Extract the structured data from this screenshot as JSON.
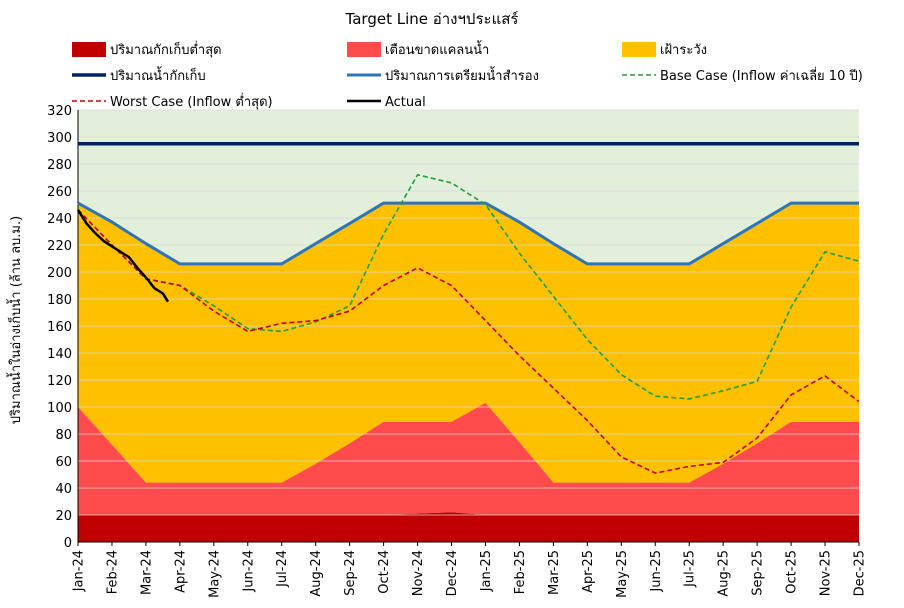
{
  "chart_data": {
    "type": "area",
    "title": "Target Line อ่างฯประแสร์",
    "ylabel": "ปริมาณน้ำในอ่างเก็บน้ำ (ล้าน ลบ.ม.)",
    "xlabel": "",
    "ylim": [
      0,
      320
    ],
    "yticks": [
      0,
      20,
      40,
      60,
      80,
      100,
      120,
      140,
      160,
      180,
      200,
      220,
      240,
      260,
      280,
      300,
      320
    ],
    "categories": [
      "Jan-24",
      "Feb-24",
      "Mar-24",
      "Apr-24",
      "May-24",
      "Jun-24",
      "Jul-24",
      "Aug-24",
      "Sep-24",
      "Oct-24",
      "Nov-24",
      "Dec-24",
      "Jan-25",
      "Feb-25",
      "Mar-25",
      "Apr-25",
      "May-25",
      "Jun-25",
      "Jul-25",
      "Aug-25",
      "Sep-25",
      "Oct-25",
      "Nov-25",
      "Dec-25"
    ],
    "legend": {
      "dead_storage": "ปริมาณกักเก็บต่ำสุด",
      "warning": "เตือนขาดแคลนน้ำ",
      "watch": "เฝ้าระวัง",
      "capacity": "ปริมาณน้ำกักเก็บ",
      "reserve": "ปริมาณการเตรียมน้ำสำรอง",
      "base_case": "Base Case (Inflow ค่าเฉลี่ย 10 ปี)",
      "worst_case": "Worst Case (Inflow ต่ำสุด)",
      "actual": "Actual"
    },
    "colors": {
      "dead_storage": "#C00000",
      "warning": "#FF4B4B",
      "watch": "#FFC000",
      "surplus": "#E2EFDA",
      "capacity": "#002060",
      "reserve": "#2E75B6",
      "base_case": "#1E9E3E",
      "worst_case": "#C00000",
      "actual": "#000000",
      "grid": "#D9D9D9"
    },
    "series": {
      "dead_storage": [
        20,
        20,
        20,
        20,
        20,
        20,
        20,
        20,
        20,
        20,
        21,
        22,
        20,
        20,
        20,
        20,
        20,
        20,
        20,
        20,
        20,
        20,
        20,
        20
      ],
      "warning": [
        100,
        72,
        44,
        44,
        44,
        44,
        44,
        58,
        73,
        89,
        89,
        89,
        103,
        74,
        44,
        44,
        44,
        44,
        44,
        58,
        73,
        89,
        89,
        89
      ],
      "capacity": [
        295,
        295,
        295,
        295,
        295,
        295,
        295,
        295,
        295,
        295,
        295,
        295,
        295,
        295,
        295,
        295,
        295,
        295,
        295,
        295,
        295,
        295,
        295,
        295
      ],
      "reserve": [
        251,
        237,
        221,
        206,
        206,
        206,
        206,
        221,
        236,
        251,
        251,
        251,
        251,
        237,
        221,
        206,
        206,
        206,
        206,
        221,
        236,
        251,
        251,
        251
      ],
      "base_case": [
        246,
        220,
        195,
        190,
        175,
        158,
        156,
        163,
        175,
        228,
        272,
        266,
        250,
        214,
        182,
        150,
        124,
        108,
        106,
        112,
        119,
        174,
        215,
        208
      ],
      "worst_case": [
        246,
        220,
        195,
        190,
        171,
        156,
        162,
        164,
        171,
        190,
        203,
        190,
        164,
        138,
        114,
        90,
        63,
        51,
        56,
        59,
        77,
        109,
        123,
        104
      ],
      "actual": [
        {
          "x": 0,
          "y": 246
        },
        {
          "x": 0.25,
          "y": 236
        },
        {
          "x": 0.5,
          "y": 229
        },
        {
          "x": 0.75,
          "y": 223
        },
        {
          "x": 1,
          "y": 219
        },
        {
          "x": 1.25,
          "y": 215
        },
        {
          "x": 1.5,
          "y": 211
        },
        {
          "x": 1.75,
          "y": 203
        },
        {
          "x": 2,
          "y": 196
        },
        {
          "x": 2.25,
          "y": 188
        },
        {
          "x": 2.5,
          "y": 184
        },
        {
          "x": 2.65,
          "y": 178
        }
      ]
    }
  }
}
